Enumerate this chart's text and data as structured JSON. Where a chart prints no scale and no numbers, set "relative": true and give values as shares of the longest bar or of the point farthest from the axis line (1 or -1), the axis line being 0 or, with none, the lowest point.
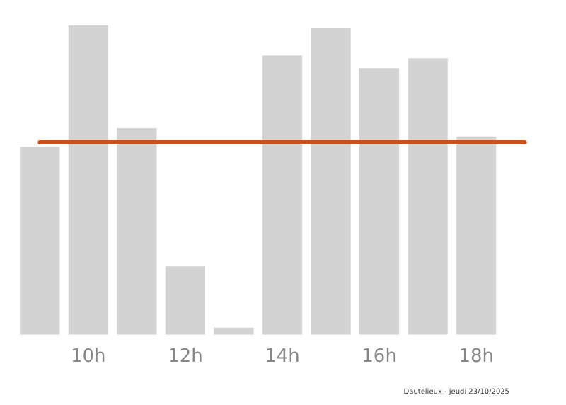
{
  "chart_data": {
    "type": "bar",
    "relative": true,
    "categories": [
      null,
      "10h",
      null,
      "12h",
      null,
      "14h",
      null,
      "16h",
      null,
      "18h",
      null
    ],
    "values": [
      0.608,
      1,
      0.668,
      0.221,
      0.023,
      0.903,
      0.991,
      0.862,
      0.894,
      0.641,
      0
    ],
    "color": "#d3d3d3",
    "ref_lines": [
      {
        "axis": "y",
        "value": 0.622,
        "color": "#c8521a",
        "line_style": "solid"
      }
    ],
    "annotations": [
      "Dautelieux - jeudi 23/10/2025"
    ],
    "grid": false,
    "legend": false
  }
}
